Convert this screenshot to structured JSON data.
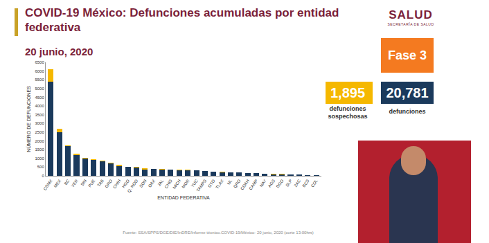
{
  "header": {
    "title": "COVID-19 México: Defunciones acumuladas por entidad federativa",
    "date": "20 junio, 2020",
    "logo": "SALUD",
    "logo_sub": "SECRETARÍA DE SALUD"
  },
  "panel": {
    "phase": "Fase 3",
    "suspected_total": "1,895",
    "suspected_label": "defunciones sospechosas",
    "confirmed_total": "20,781",
    "confirmed_label": "defunciones"
  },
  "footer": {
    "source": "Fuente: SSA/SPPS/DGE/DIE/InDRE/Informe técnico.COVID-19/México- 20 junio, 2020 (corte 13:00hrs)"
  },
  "chart_data": {
    "type": "bar",
    "stacked": true,
    "grid": false,
    "x_label": "ENTIDAD FEDERATIVA",
    "y_label": "NÚMERO DE DEFUNCIONES",
    "categories": [
      "CDMX",
      "MEX",
      "BC",
      "VER",
      "SIN",
      "PUE",
      "TAB",
      "GRO",
      "CHIH",
      "HGO",
      "Q. ROO",
      "SON",
      "OAX",
      "JAL",
      "CHIS",
      "MICH",
      "MOR",
      "YUC",
      "TAMPS",
      "GTO",
      "TLAX",
      "NL",
      "QRO",
      "COAH",
      "CAMP",
      "NAY",
      "AGS",
      "DGO",
      "SLP",
      "ZAC",
      "BCS",
      "COL"
    ],
    "series": [
      {
        "color": "#1b3a5c",
        "values": [
          5400,
          2500,
          1700,
          1200,
          1000,
          900,
          850,
          700,
          550,
          500,
          480,
          350,
          380,
          350,
          350,
          320,
          320,
          300,
          260,
          220,
          210,
          200,
          180,
          150,
          150,
          120,
          90,
          90,
          80,
          60,
          50,
          40
        ]
      },
      {
        "color": "#f5b800",
        "values": [
          700,
          200,
          50,
          50,
          50,
          50,
          20,
          50,
          100,
          20,
          20,
          100,
          30,
          30,
          20,
          20,
          20,
          10,
          20,
          20,
          10,
          10,
          10,
          10,
          10,
          10,
          10,
          10,
          10,
          10,
          5,
          5
        ]
      }
    ],
    "ylim": [
      0,
      6500
    ],
    "yticks": [
      0,
      500,
      1000,
      1500,
      2000,
      2500,
      3000,
      3500,
      4000,
      4500,
      5000,
      5500,
      6000,
      6500
    ]
  }
}
